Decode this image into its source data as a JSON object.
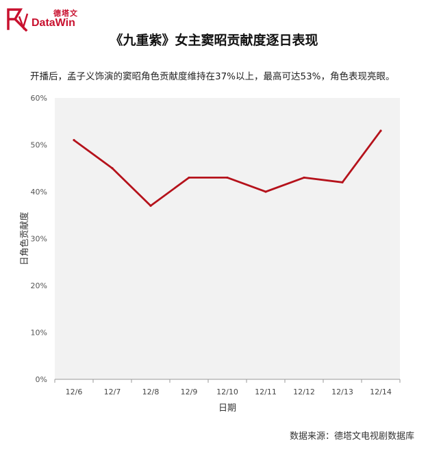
{
  "brand": {
    "name_cn": "德塔文",
    "name_en": "DataWin",
    "color": "#c8102e"
  },
  "chart_data": {
    "type": "line",
    "title": "《九重紫》女主窦昭贡献度逐日表现",
    "subtitle": "开播后，孟子义饰演的窦昭角色贡献度维持在37%以上，最高可达53%，角色表现亮眼。",
    "xlabel": "日期",
    "ylabel": "日角色贡献度",
    "categories": [
      "12/6",
      "12/7",
      "12/8",
      "12/9",
      "12/10",
      "12/11",
      "12/12",
      "12/13",
      "12/14"
    ],
    "series": [
      {
        "values": [
          51,
          45,
          37,
          43,
          43,
          40,
          43,
          42,
          53
        ],
        "color": "#b5121b"
      }
    ],
    "ylim": [
      0,
      60
    ],
    "yticks": [
      0,
      10,
      20,
      30,
      40,
      50,
      60
    ],
    "ytick_labels": [
      "0%",
      "10%",
      "20%",
      "30%",
      "40%",
      "50%",
      "60%"
    ],
    "grid": false,
    "plot_background": "#f2f2f2"
  },
  "source": "数据来源：德塔文电视剧数据库"
}
